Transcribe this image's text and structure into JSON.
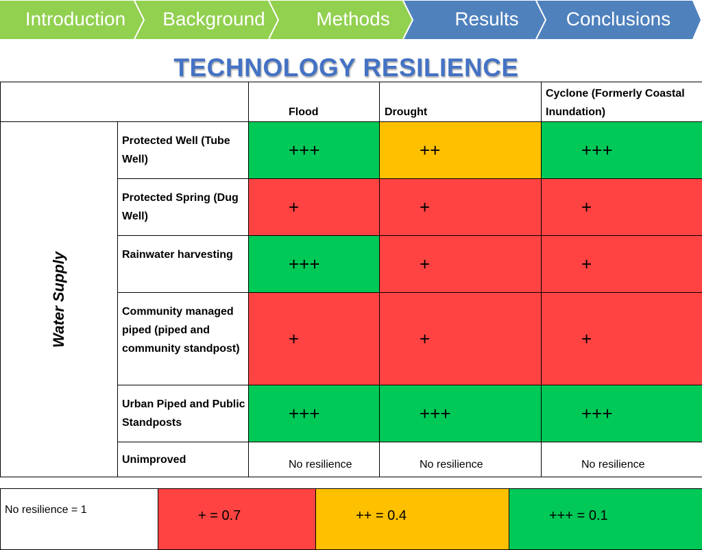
{
  "nav": {
    "items": [
      {
        "label": "Introduction",
        "state": "visited"
      },
      {
        "label": "Background",
        "state": "visited"
      },
      {
        "label": "Methods",
        "state": "visited"
      },
      {
        "label": "Results",
        "state": "current"
      },
      {
        "label": "Conclusions",
        "state": "upcoming"
      }
    ],
    "colors": {
      "visited": "#92d050",
      "current": "#4f81bd",
      "upcoming": "#4f81bd"
    }
  },
  "title": "TECHNOLOGY RESILIENCE",
  "table": {
    "columns": [
      "Flood",
      "Drought",
      "Cyclone (Formerly Coastal Inundation)"
    ],
    "group_label": "Water Supply",
    "rows": [
      {
        "technology": "Protected Well (Tube Well)",
        "flood": "+++",
        "drought": "++",
        "cyclone": "+++",
        "flood_color": "green",
        "drought_color": "orange",
        "cyclone_color": "green"
      },
      {
        "technology": "Protected Spring (Dug Well)",
        "flood": "+",
        "drought": "+",
        "cyclone": "+",
        "flood_color": "red",
        "drought_color": "red",
        "cyclone_color": "red"
      },
      {
        "technology": "Rainwater harvesting",
        "flood": "+++",
        "drought": "+",
        "cyclone": "+",
        "flood_color": "green",
        "drought_color": "red",
        "cyclone_color": "red"
      },
      {
        "technology": "Community managed piped (piped and community standpost)",
        "flood": "+",
        "drought": "+",
        "cyclone": "+",
        "flood_color": "red",
        "drought_color": "red",
        "cyclone_color": "red"
      },
      {
        "technology": "Urban Piped and Public Standposts",
        "flood": "+++",
        "drought": "+++",
        "cyclone": "+++",
        "flood_color": "green",
        "drought_color": "green",
        "cyclone_color": "green"
      },
      {
        "technology": "Unimproved",
        "flood": "No resilience",
        "drought": "No resilience",
        "cyclone": "No resilience",
        "flood_color": "white",
        "drought_color": "white",
        "cyclone_color": "white"
      }
    ]
  },
  "legend": {
    "none": "No resilience  = 1",
    "one_plus": "+ = 0.7",
    "two_plus": "++ = 0.4",
    "three_plus": "+++ = 0.1"
  },
  "colors": {
    "green": "#00c957",
    "orange": "#ffc000",
    "red": "#ff4343",
    "title_blue": "#4472c4"
  }
}
